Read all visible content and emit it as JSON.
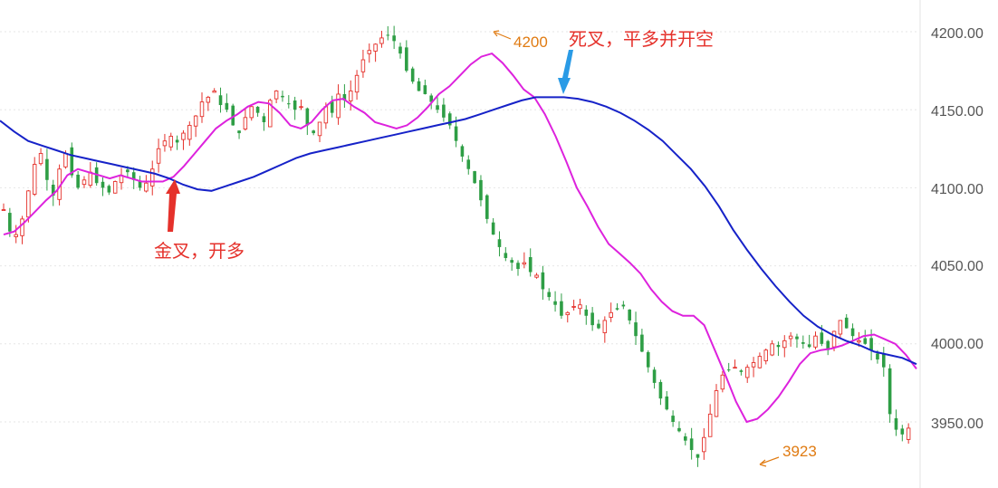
{
  "chart_data": {
    "type": "candlestick",
    "y_axis": {
      "ticks": [
        "4200.00",
        "4150.00",
        "4100.00",
        "4050.00",
        "4000.00",
        "3950.00"
      ],
      "tick_values": [
        4200,
        4150,
        4100,
        4050,
        4000,
        3950
      ],
      "ylim": [
        3925,
        4210
      ],
      "position": "right",
      "grid": true
    },
    "candle_count": 170,
    "ohlc_close_path": [
      4086,
      4072,
      4070,
      4080,
      4098,
      4115,
      4122,
      4105,
      4095,
      4112,
      4122,
      4108,
      4100,
      4105,
      4110,
      4103,
      4100,
      4097,
      4104,
      4108,
      4110,
      4105,
      4100,
      4103,
      4112,
      4125,
      4130,
      4133,
      4129,
      4135,
      4140,
      4146,
      4155,
      4158,
      4162,
      4153,
      4150,
      4140,
      4135,
      4145,
      4152,
      4148,
      4142,
      4156,
      4162,
      4158,
      4154,
      4150,
      4152,
      4140,
      4135,
      4142,
      4152,
      4148,
      4160,
      4156,
      4162,
      4172,
      4182,
      4188,
      4192,
      4196,
      4198,
      4194,
      4186,
      4175,
      4168,
      4162,
      4160,
      4155,
      4150,
      4145,
      4140,
      4130,
      4120,
      4112,
      4103,
      4092,
      4080,
      4070,
      4062,
      4055,
      4052,
      4048,
      4052,
      4046,
      4044,
      4035,
      4030,
      4025,
      4018,
      4020,
      4024,
      4025,
      4018,
      4012,
      4010,
      4015,
      4020,
      4022,
      4024,
      4015,
      4005,
      3995,
      3985,
      3975,
      3965,
      3958,
      3950,
      3944,
      3938,
      3932,
      3927,
      3940,
      3955,
      3970,
      3980,
      3983,
      3985,
      3982,
      3985,
      3988,
      3992,
      3996,
      4000,
      3998,
      4002,
      4005,
      4003,
      4000,
      3998,
      4005,
      4000,
      3996,
      4008,
      4015,
      4010,
      4005,
      4002,
      4000,
      3996,
      3990,
      3985,
      3955,
      3945,
      3942,
      3946
    ],
    "series": [
      {
        "name": "",
        "color": "#dd22dd",
        "values": [
          4070,
          4072,
          4078,
          4085,
          4092,
          4098,
          4108,
          4112,
          4110,
          4108,
          4106,
          4108,
          4106,
          4104,
          4104,
          4104,
          4107,
          4114,
          4122,
          4130,
          4138,
          4143,
          4147,
          4152,
          4155,
          4154,
          4148,
          4140,
          4138,
          4142,
          4150,
          4156,
          4157,
          4152,
          4148,
          4142,
          4140,
          4138,
          4140,
          4145,
          4152,
          4160,
          4165,
          4172,
          4179,
          4184,
          4186,
          4180,
          4172,
          4163,
          4158,
          4147,
          4133,
          4117,
          4100,
          4088,
          4075,
          4064,
          4058,
          4052,
          4045,
          4035,
          4027,
          4021,
          4018,
          4018,
          4012,
          3996,
          3980,
          3963,
          3950,
          3952,
          3958,
          3966,
          3976,
          3987,
          3994,
          3996,
          3997,
          3999,
          4002,
          4005,
          4006,
          4003,
          4000,
          3993,
          3984
        ]
      },
      {
        "name": "",
        "color": "#1622c8",
        "values": [
          4143,
          4136,
          4130,
          4127,
          4124,
          4121,
          4119,
          4117,
          4115,
          4113,
          4111,
          4109,
          4106,
          4102,
          4099,
          4098,
          4101,
          4104,
          4107,
          4111,
          4115,
          4119,
          4122,
          4124,
          4126,
          4128,
          4130,
          4132,
          4134,
          4136,
          4138,
          4140,
          4142,
          4144,
          4147,
          4150,
          4153,
          4156,
          4158,
          4158,
          4158,
          4157,
          4155,
          4152,
          4148,
          4143,
          4137,
          4130,
          4121,
          4112,
          4101,
          4088,
          4073,
          4060,
          4048,
          4037,
          4027,
          4018,
          4011,
          4006,
          4002,
          3999,
          3995,
          3993,
          3991,
          3987
        ]
      }
    ],
    "annotations": [
      {
        "text": "金叉，开多",
        "color": "#e5312b"
      },
      {
        "text": "死叉，平多并开空",
        "color": "#e5312b"
      },
      {
        "text": "4200",
        "color": "#e07b12"
      },
      {
        "text": "3923",
        "color": "#e07b12"
      }
    ],
    "colors": {
      "up": "#e5312b",
      "down": "#2e9e45",
      "grid": "#e6e6e6",
      "axis_text": "#555555"
    }
  }
}
